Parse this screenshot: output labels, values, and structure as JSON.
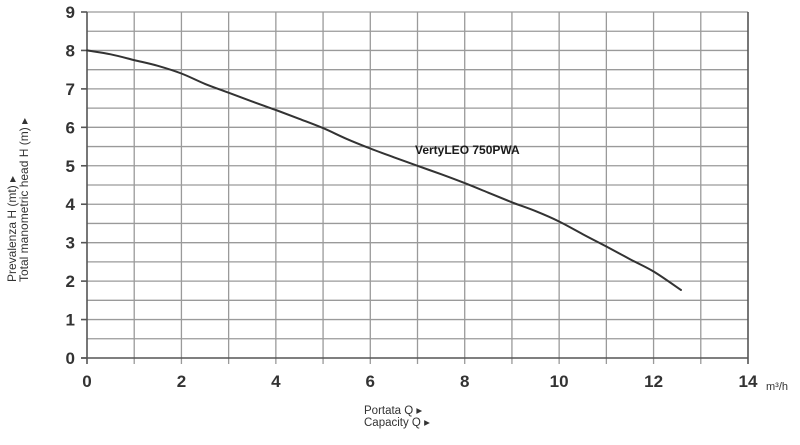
{
  "chart_data": {
    "type": "line",
    "title": "",
    "series": [
      {
        "name": "VertyLEO 750PWA",
        "x": [
          0,
          0.5,
          1,
          1.5,
          2,
          2.5,
          3,
          3.5,
          4,
          4.5,
          5,
          5.5,
          6,
          6.5,
          7,
          7.5,
          8,
          8.5,
          9,
          9.5,
          10,
          10.5,
          11,
          11.5,
          12,
          12.58
        ],
        "y": [
          8.0,
          7.9,
          7.75,
          7.6,
          7.4,
          7.13,
          6.9,
          6.67,
          6.45,
          6.22,
          5.98,
          5.7,
          5.45,
          5.22,
          5.0,
          4.78,
          4.55,
          4.3,
          4.05,
          3.82,
          3.55,
          3.22,
          2.9,
          2.57,
          2.25,
          1.77
        ]
      }
    ],
    "xlabel": "Portata Q ▸ / Capacity Q ▸",
    "ylabel": "Prevalenza H (mt) ▸ / Total manometric head H (m) ▸",
    "x_unit": "m³/h",
    "xlim": [
      0,
      14
    ],
    "ylim": [
      0,
      9
    ],
    "x_ticks": [
      0,
      2,
      4,
      6,
      8,
      10,
      12,
      14
    ],
    "y_ticks": [
      0,
      1,
      2,
      3,
      4,
      5,
      6,
      7,
      8,
      9
    ],
    "grid": {
      "x_step": 1,
      "y_step": 0.5,
      "on": true
    },
    "annotations": [
      {
        "text": "VertyLEO 750PWA",
        "x": 7,
        "y": 5.45
      }
    ],
    "legend": "none"
  },
  "labels": {
    "x_unit": "m³/h",
    "x_title_line1": "Portata Q ▸",
    "x_title_line2": "Capacity Q ▸",
    "y_title_line1": "Prevalenza H (mt) ▸",
    "y_title_line2": "Total manometric head H (m) ▸",
    "series_label": "VertyLEO 750PWA"
  },
  "colors": {
    "curve": "#333333",
    "grid": "#9a9a9a",
    "axis": "#555555",
    "text": "#333333"
  }
}
